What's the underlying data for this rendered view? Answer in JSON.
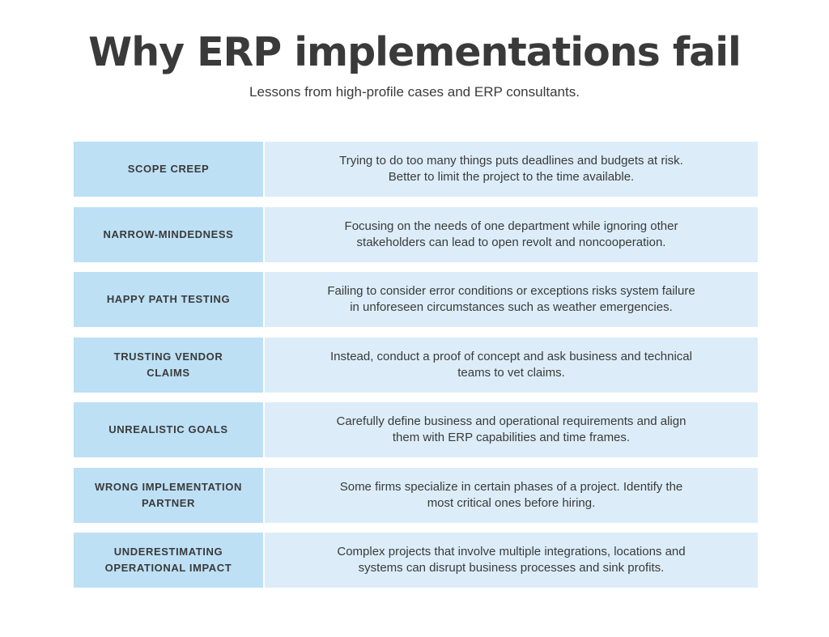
{
  "header": {
    "title": "Why ERP implementations fail",
    "subtitle": "Lessons from high-profile cases and ERP consultants."
  },
  "rows": [
    {
      "label": [
        "SCOPE CREEP"
      ],
      "description": [
        "Trying to do too many things puts deadlines and budgets at risk.",
        "Better to limit the project to the time available."
      ]
    },
    {
      "label": [
        "NARROW-MINDEDNESS"
      ],
      "description": [
        "Focusing on the needs of one department while ignoring other",
        "stakeholders can lead to open revolt and noncooperation."
      ]
    },
    {
      "label": [
        "HAPPY PATH TESTING"
      ],
      "description": [
        "Failing to consider error conditions or exceptions risks system failure",
        "in unforeseen circumstances such as weather emergencies."
      ]
    },
    {
      "label": [
        "TRUSTING VENDOR",
        "CLAIMS"
      ],
      "description": [
        "Instead, conduct a proof of concept and ask business and technical",
        "teams to vet claims."
      ]
    },
    {
      "label": [
        "UNREALISTIC GOALS"
      ],
      "description": [
        "Carefully define business and operational requirements and align",
        "them with ERP capabilities and time frames."
      ]
    },
    {
      "label": [
        "WRONG IMPLEMENTATION",
        "PARTNER"
      ],
      "description": [
        "Some firms specialize in certain phases of a project. Identify the",
        "most critical ones before hiring."
      ]
    },
    {
      "label": [
        "UNDERESTIMATING",
        "OPERATIONAL IMPACT"
      ],
      "description": [
        "Complex projects that involve multiple integrations, locations and",
        "systems can disrupt business processes and sink profits."
      ]
    }
  ],
  "colors": {
    "label_background": "#bde0f5",
    "description_background": "#dcedf9",
    "text": "#3a3a3a"
  }
}
